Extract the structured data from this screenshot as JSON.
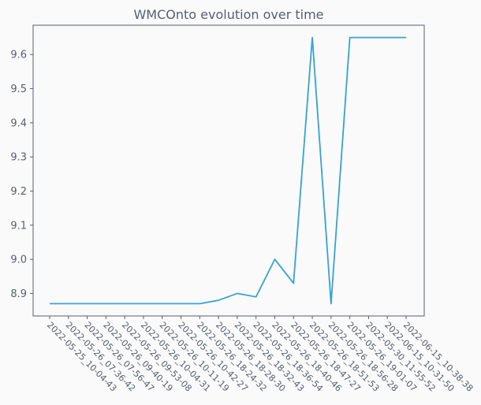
{
  "chart_data": {
    "type": "line",
    "title": "WMCOnto evolution over time",
    "xlabel": "",
    "ylabel": "",
    "categories": [
      "2022-05-25_10-04-43",
      "2022-05-26_07-36-42",
      "2022-05-26_07-56-47",
      "2022-05-26_09-40-19",
      "2022-05-26_09-53-08",
      "2022-05-26_10-04-31",
      "2022-05-26_10-11-19",
      "2022-05-26_10-42-27",
      "2022-05-26_18-24-32",
      "2022-05-26_18-28-30",
      "2022-05-26_18-32-43",
      "2022-05-26_18-36-54",
      "2022-05-26_18-40-46",
      "2022-05-26_18-47-27",
      "2022-05-26_18-51-53",
      "2022-05-26_18-56-28",
      "2022-05-26_19-01-07",
      "2022-05-30_11-55-52",
      "2022-06-15_10-31-50",
      "2022-06-15_10-38-38"
    ],
    "series": [
      {
        "values": [
          8.87,
          8.87,
          8.87,
          8.87,
          8.87,
          8.87,
          8.87,
          8.87,
          8.87,
          8.88,
          8.9,
          8.89,
          9.0,
          8.93,
          9.65,
          8.87,
          9.65,
          9.65,
          9.65,
          9.65
        ],
        "color": "#38a2d6"
      }
    ],
    "yticks": [
      8.9,
      9.0,
      9.1,
      9.2,
      9.3,
      9.4,
      9.5,
      9.6
    ],
    "ylim": [
      8.834,
      9.686
    ],
    "grid": false,
    "legend": "none"
  }
}
